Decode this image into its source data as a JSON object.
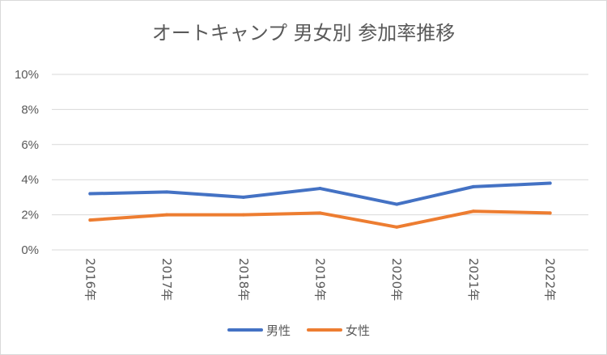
{
  "chart_data": {
    "type": "line",
    "title": "オートキャンプ 男女別 参加率推移",
    "categories": [
      "2016年",
      "2017年",
      "2018年",
      "2019年",
      "2020年",
      "2021年",
      "2022年"
    ],
    "ylim": [
      0,
      10
    ],
    "yticks": [
      0,
      2,
      4,
      6,
      8,
      10
    ],
    "ytick_labels": [
      "0%",
      "2%",
      "4%",
      "6%",
      "8%",
      "10%"
    ],
    "grid": true,
    "legend_position": "bottom",
    "series": [
      {
        "name": "男性",
        "color": "#4472c4",
        "values": [
          3.2,
          3.3,
          3.0,
          3.5,
          2.6,
          3.6,
          3.8
        ]
      },
      {
        "name": "女性",
        "color": "#ed7d31",
        "values": [
          1.7,
          2.0,
          2.0,
          2.1,
          1.3,
          2.2,
          2.1
        ]
      }
    ]
  }
}
